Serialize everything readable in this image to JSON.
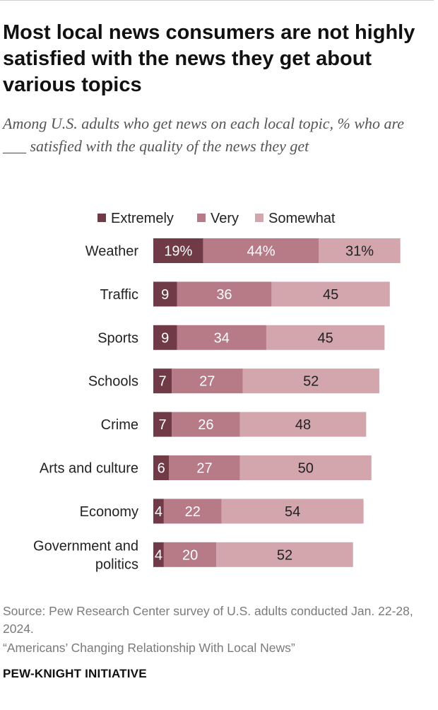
{
  "header": {
    "title": "Most local news consumers are not highly satisfied with the news they get about various topics",
    "subtitle": "Among U.S. adults who get news on each local topic, % who are ___ satisfied with the quality of the news they get"
  },
  "footer": {
    "source": "Source: Pew Research Center survey of U.S. adults conducted Jan. 22-28, 2024.",
    "report": "“Americans’ Changing Relationship With Local News”",
    "org": "PEW-KNIGHT INITIATIVE"
  },
  "chart_data": {
    "type": "bar",
    "orientation": "horizontal",
    "stacked": true,
    "categories": [
      "Weather",
      "Traffic",
      "Sports",
      "Schools",
      "Crime",
      "Arts and culture",
      "Economy",
      "Government and politics"
    ],
    "series": [
      {
        "name": "Extremely",
        "color": "#713a47",
        "values": [
          19,
          9,
          9,
          7,
          7,
          6,
          4,
          4
        ]
      },
      {
        "name": "Very",
        "color": "#b67b86",
        "values": [
          44,
          36,
          34,
          27,
          26,
          27,
          22,
          20
        ]
      },
      {
        "name": "Somewhat",
        "color": "#d3a6ae",
        "values": [
          31,
          45,
          45,
          52,
          48,
          50,
          54,
          52
        ]
      }
    ],
    "data_labels": [
      [
        "19%",
        "44%",
        "31%"
      ],
      [
        "9",
        "36",
        "45"
      ],
      [
        "9",
        "34",
        "45"
      ],
      [
        "7",
        "27",
        "52"
      ],
      [
        "7",
        "26",
        "48"
      ],
      [
        "6",
        "27",
        "50"
      ],
      [
        "4",
        "22",
        "54"
      ],
      [
        "4",
        "20",
        "52"
      ]
    ],
    "legend": {
      "position": "top",
      "labels": [
        "Extremely",
        "Very",
        "Somewhat"
      ]
    },
    "xlim": [
      0,
      100
    ],
    "grid": false
  }
}
